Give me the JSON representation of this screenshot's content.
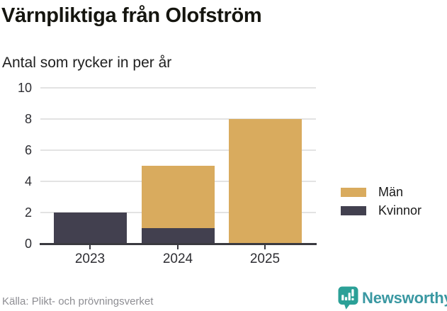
{
  "header": {
    "title": "Värnpliktiga från Olofström",
    "subtitle": "Antal som rycker in per år"
  },
  "chart_data": {
    "type": "bar",
    "stacked": true,
    "categories": [
      "2023",
      "2024",
      "2025"
    ],
    "series": [
      {
        "name": "Män",
        "color": "#d9ab5e",
        "values": [
          0,
          4,
          8
        ]
      },
      {
        "name": "Kvinnor",
        "color": "#42404f",
        "values": [
          2,
          1,
          0
        ]
      }
    ],
    "stack_order_bottom_to_top": [
      "Kvinnor",
      "Män"
    ],
    "title": "Värnpliktiga från Olofström",
    "subtitle": "Antal som rycker in per år",
    "xlabel": "",
    "ylabel": "",
    "ylim": [
      0,
      10
    ],
    "yticks": [
      0,
      2,
      4,
      6,
      8,
      10
    ],
    "grid": true,
    "legend_position": "right"
  },
  "footer": {
    "source": "Källa: Plikt- och prövningsverket",
    "brand": "Newsworthy"
  },
  "colors": {
    "axis": "#3a3a40",
    "gridline": "#e3e3e3",
    "brand_teal_icon": "#2ba097",
    "brand_teal_text": "#3a98a2"
  }
}
